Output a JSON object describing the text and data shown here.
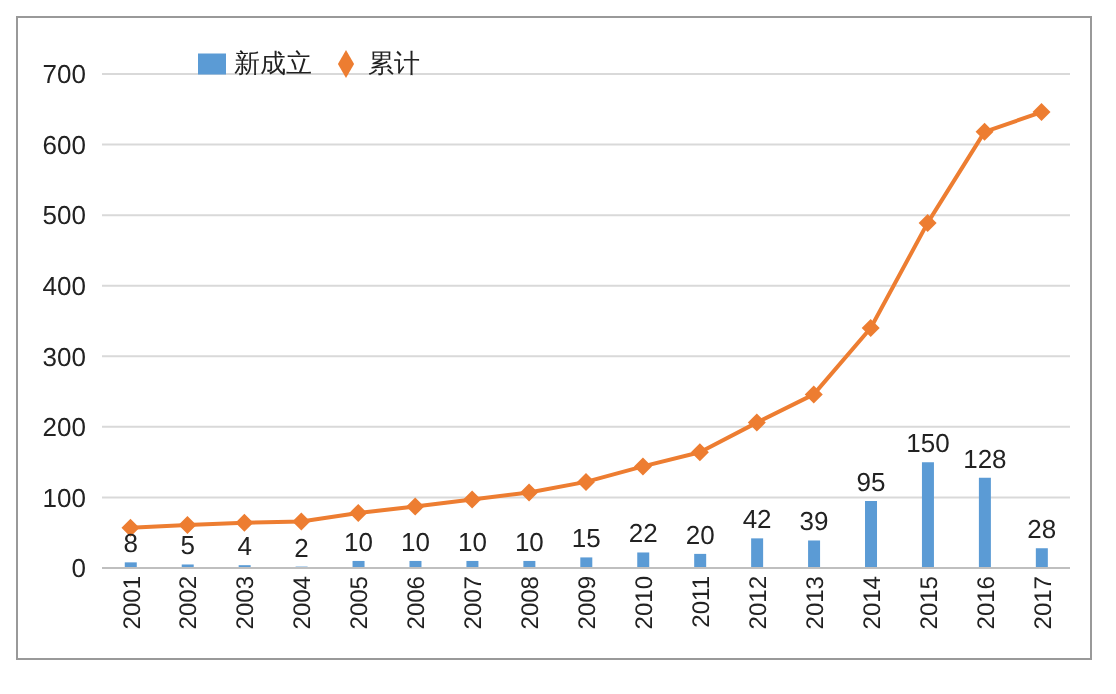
{
  "chart_data": {
    "type": "bar",
    "categories": [
      "2001",
      "2002",
      "2003",
      "2004",
      "2005",
      "2006",
      "2007",
      "2008",
      "2009",
      "2010",
      "2011",
      "2012",
      "2013",
      "2014",
      "2015",
      "2016",
      "2017"
    ],
    "series": [
      {
        "name": "新成立",
        "color": "#5b9bd5",
        "values": [
          8,
          5,
          4,
          2,
          10,
          10,
          10,
          10,
          15,
          22,
          20,
          42,
          39,
          95,
          150,
          128,
          28
        ],
        "value_labels": [
          "8",
          "5",
          "4",
          "2",
          "10",
          "10",
          "10",
          "10",
          "15",
          "22",
          "20",
          "42",
          "39",
          "95",
          "150",
          "128",
          "28"
        ]
      },
      {
        "name": "累计",
        "type": "line",
        "color": "#ed7d31",
        "marker": "diamond",
        "values": [
          57,
          61,
          64,
          66,
          78,
          87,
          97,
          107,
          122,
          144,
          164,
          206,
          246,
          340,
          489,
          618,
          646
        ]
      }
    ],
    "ylim": [
      0,
      700
    ],
    "yticks": [
      0,
      100,
      200,
      300,
      400,
      500,
      600,
      700
    ],
    "grid": "y",
    "legend": "top left"
  }
}
